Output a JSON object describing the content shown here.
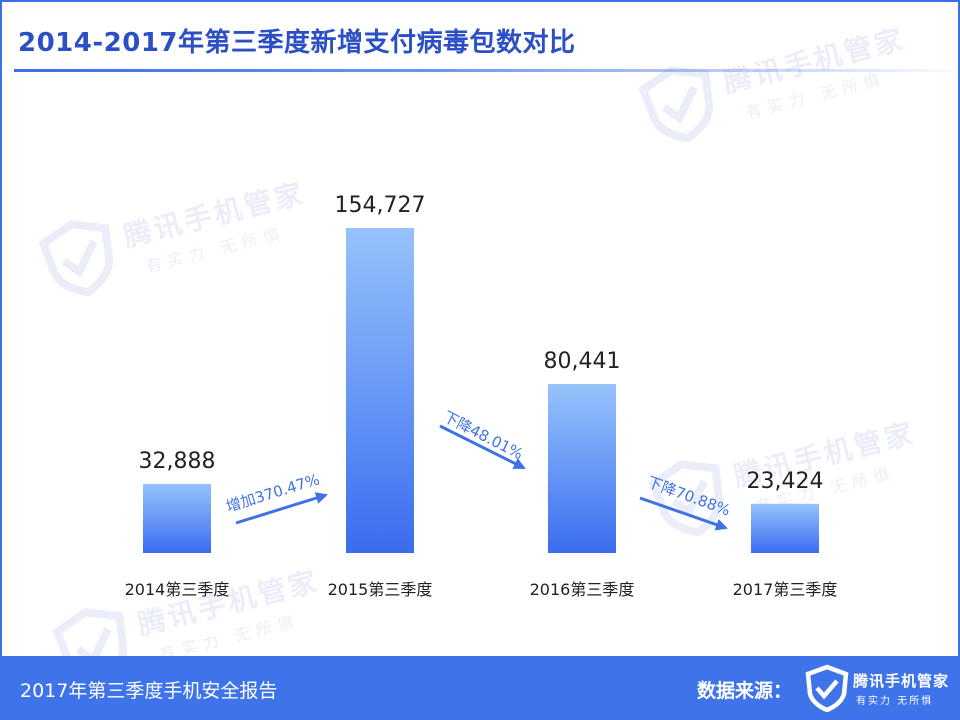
{
  "header": {
    "title": "2014-2017年第三季度新增支付病毒包数对比"
  },
  "watermark": {
    "brand": "腾讯手机管家",
    "slogan": "有实力 无所惧"
  },
  "chart_data": {
    "type": "bar",
    "categories": [
      "2014第三季度",
      "2015第三季度",
      "2016第三季度",
      "2017第三季度"
    ],
    "values": [
      32888,
      154727,
      80441,
      23424
    ],
    "value_labels": [
      "32,888",
      "154,727",
      "80,441",
      "23,424"
    ],
    "title": "2014-2017年第三季度新增支付病毒包数对比",
    "xlabel": "",
    "ylabel": "",
    "ylim": [
      0,
      154727
    ],
    "grid": false,
    "legend": "none",
    "bar_color_top": "#96c3fb",
    "bar_color_bottom": "#3b6cf0",
    "annotations": [
      {
        "from": 0,
        "to": 1,
        "text": "增加370.47%"
      },
      {
        "from": 1,
        "to": 2,
        "text": "下降48.01%"
      },
      {
        "from": 2,
        "to": 3,
        "text": "下降70.88%"
      }
    ]
  },
  "footer": {
    "report_title": "2017年第三季度手机安全报告",
    "source_label": "数据来源：",
    "brand": "腾讯手机管家",
    "slogan": "有实力  无所惧"
  },
  "colors": {
    "accent": "#3a6fe8",
    "title_text": "#2b4fc4",
    "footer_bg": "#3f73ea",
    "annotation": "#3f72e6"
  },
  "icons": {
    "watermark": "shield-check-icon",
    "footer_logo": "shield-check-icon"
  }
}
